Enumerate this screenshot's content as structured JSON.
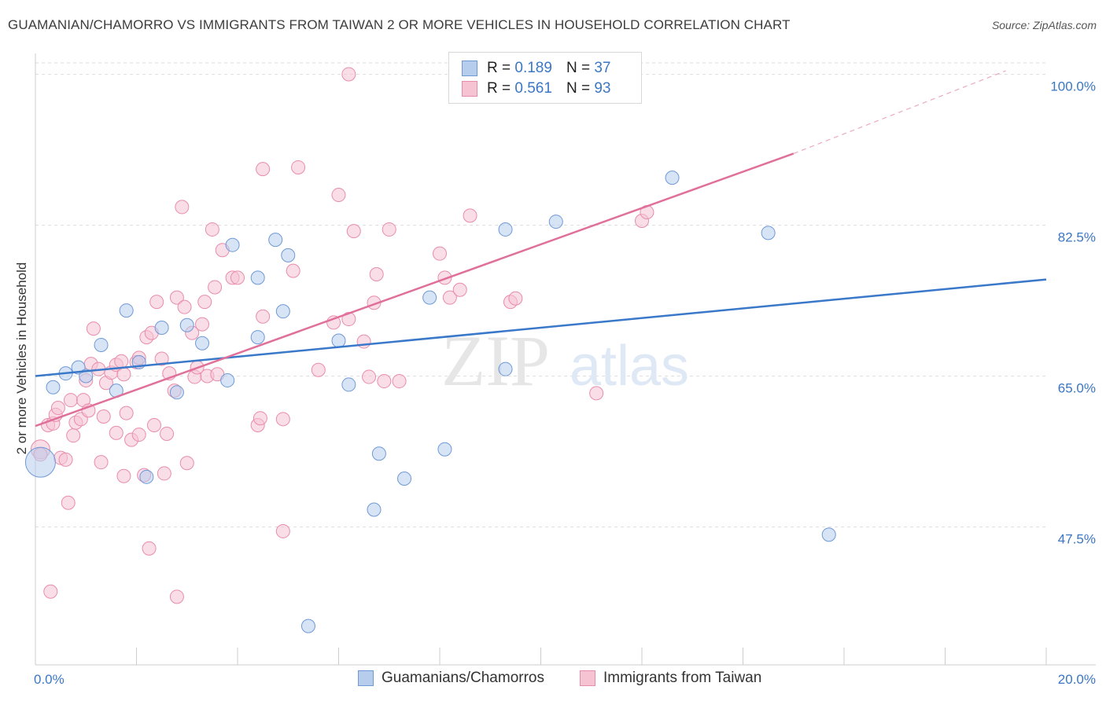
{
  "title": "GUAMANIAN/CHAMORRO VS IMMIGRANTS FROM TAIWAN 2 OR MORE VEHICLES IN HOUSEHOLD CORRELATION CHART",
  "source": "Source: ZipAtlas.com",
  "watermark": {
    "zip": "ZIP",
    "atlas": "atlas"
  },
  "legend": {
    "rows": [
      {
        "r_label": "R =",
        "r_value": "0.189",
        "n_label": "N =",
        "n_value": "37"
      },
      {
        "r_label": "R =",
        "r_value": "0.561",
        "n_label": "N =",
        "n_value": "93"
      }
    ]
  },
  "bottom_legend": [
    "Guamanians/Chamorros",
    "Immigrants from Taiwan"
  ],
  "colors": {
    "blue_fill": "#b7cdee",
    "blue_stroke": "#6f99d6",
    "blue_line": "#3a78c9",
    "pink_fill": "#f6c3d3",
    "pink_stroke": "#e98cab",
    "pink_line": "#e0709a",
    "tick_label": "#3b77c4",
    "grid": "#dddddd"
  },
  "chart_data": {
    "type": "scatter",
    "title": "GUAMANIAN/CHAMORRO VS IMMIGRANTS FROM TAIWAN 2 OR MORE VEHICLES IN HOUSEHOLD CORRELATION CHART",
    "xlabel": "",
    "ylabel": "2 or more Vehicles in Household",
    "x_tick_labels": [
      "0.0%",
      "20.0%"
    ],
    "y_tick_labels": [
      "100.0%",
      "82.5%",
      "65.0%",
      "47.5%"
    ],
    "y_tick_values": [
      100.0,
      82.5,
      65.0,
      47.5
    ],
    "xlim": [
      0,
      20
    ],
    "ylim": [
      31.5,
      101.5
    ],
    "grid": "horizontal dashed",
    "legend_placement": "top-center",
    "series": [
      {
        "name": "Guamanians/Chamorros",
        "R": 0.189,
        "N": 37,
        "points": [
          [
            0.1,
            55.0,
            3
          ],
          [
            0.35,
            63.7,
            1
          ],
          [
            0.6,
            65.3,
            1
          ],
          [
            0.85,
            66.0,
            1
          ],
          [
            1.0,
            65.0,
            1
          ],
          [
            1.3,
            68.6,
            1
          ],
          [
            1.6,
            63.3,
            1
          ],
          [
            1.8,
            72.6,
            1
          ],
          [
            2.05,
            66.6,
            1
          ],
          [
            2.2,
            53.3,
            1
          ],
          [
            2.5,
            70.6,
            1
          ],
          [
            2.8,
            63.1,
            1
          ],
          [
            3.0,
            70.9,
            1
          ],
          [
            3.3,
            68.8,
            1
          ],
          [
            3.8,
            64.5,
            1
          ],
          [
            3.9,
            80.2,
            1
          ],
          [
            4.4,
            69.5,
            1
          ],
          [
            4.4,
            76.4,
            1
          ],
          [
            4.75,
            80.8,
            1
          ],
          [
            4.9,
            72.5,
            1
          ],
          [
            5.0,
            79.0,
            1
          ],
          [
            5.4,
            36.0,
            1
          ],
          [
            6.0,
            69.1,
            1
          ],
          [
            6.2,
            64.0,
            1
          ],
          [
            6.7,
            49.5,
            1
          ],
          [
            6.8,
            56.0,
            1
          ],
          [
            7.3,
            53.1,
            1
          ],
          [
            7.8,
            74.1,
            1
          ],
          [
            8.1,
            56.5,
            1
          ],
          [
            9.3,
            65.8,
            1
          ],
          [
            9.3,
            82.0,
            1
          ],
          [
            10.3,
            82.9,
            1
          ],
          [
            12.6,
            88.0,
            1
          ],
          [
            14.5,
            81.6,
            1
          ],
          [
            15.7,
            46.6,
            1
          ]
        ],
        "trend": {
          "x0": 0,
          "y0": 65.0,
          "x1": 20,
          "y1": 76.2
        }
      },
      {
        "name": "Immigrants from Taiwan",
        "R": 0.561,
        "N": 93,
        "points": [
          [
            0.1,
            56.5,
            2
          ],
          [
            0.1,
            55.9,
            1
          ],
          [
            0.25,
            59.3,
            1
          ],
          [
            0.3,
            40.0,
            1
          ],
          [
            0.35,
            59.5,
            1
          ],
          [
            0.4,
            60.5,
            1
          ],
          [
            0.45,
            61.3,
            1
          ],
          [
            0.5,
            55.5,
            1
          ],
          [
            0.6,
            55.3,
            1
          ],
          [
            0.65,
            50.3,
            1
          ],
          [
            0.7,
            62.2,
            1
          ],
          [
            0.75,
            58.1,
            1
          ],
          [
            0.8,
            59.6,
            1
          ],
          [
            0.9,
            60.0,
            1
          ],
          [
            0.95,
            62.2,
            1
          ],
          [
            1.0,
            64.5,
            1
          ],
          [
            1.05,
            61.0,
            1
          ],
          [
            1.1,
            66.4,
            1
          ],
          [
            1.15,
            70.5,
            1
          ],
          [
            1.25,
            65.8,
            1
          ],
          [
            1.3,
            55.0,
            1
          ],
          [
            1.35,
            60.3,
            1
          ],
          [
            1.4,
            64.2,
            1
          ],
          [
            1.5,
            65.4,
            1
          ],
          [
            1.6,
            66.3,
            1
          ],
          [
            1.6,
            58.4,
            1
          ],
          [
            1.7,
            66.7,
            1
          ],
          [
            1.75,
            65.2,
            1
          ],
          [
            1.75,
            53.4,
            1
          ],
          [
            1.8,
            60.7,
            1
          ],
          [
            1.9,
            57.6,
            1
          ],
          [
            2.0,
            66.6,
            1
          ],
          [
            2.05,
            67.1,
            1
          ],
          [
            2.05,
            58.2,
            1
          ],
          [
            2.15,
            53.5,
            1
          ],
          [
            2.2,
            69.5,
            1
          ],
          [
            2.3,
            70.0,
            1
          ],
          [
            2.25,
            45.0,
            1
          ],
          [
            2.35,
            59.3,
            1
          ],
          [
            2.4,
            73.6,
            1
          ],
          [
            2.5,
            67.0,
            1
          ],
          [
            2.55,
            53.7,
            1
          ],
          [
            2.6,
            58.3,
            1
          ],
          [
            2.65,
            65.3,
            1
          ],
          [
            2.75,
            63.3,
            1
          ],
          [
            2.8,
            74.1,
            1
          ],
          [
            2.8,
            39.4,
            1
          ],
          [
            2.9,
            84.6,
            1
          ],
          [
            2.95,
            73.0,
            1
          ],
          [
            3.0,
            54.9,
            1
          ],
          [
            3.1,
            70.0,
            1
          ],
          [
            3.15,
            64.9,
            1
          ],
          [
            3.2,
            66.0,
            1
          ],
          [
            3.3,
            71.0,
            1
          ],
          [
            3.35,
            73.6,
            1
          ],
          [
            3.4,
            65.0,
            1
          ],
          [
            3.5,
            82.0,
            1
          ],
          [
            3.55,
            75.3,
            1
          ],
          [
            3.6,
            65.2,
            1
          ],
          [
            3.7,
            79.6,
            1
          ],
          [
            3.9,
            76.4,
            1
          ],
          [
            4.0,
            76.4,
            1
          ],
          [
            4.4,
            59.3,
            1
          ],
          [
            4.45,
            60.1,
            1
          ],
          [
            4.5,
            71.9,
            1
          ],
          [
            4.5,
            89.0,
            1
          ],
          [
            4.9,
            60.0,
            1
          ],
          [
            4.9,
            47.0,
            1
          ],
          [
            5.1,
            77.2,
            1
          ],
          [
            5.2,
            89.2,
            1
          ],
          [
            5.6,
            65.7,
            1
          ],
          [
            5.9,
            71.2,
            1
          ],
          [
            6.0,
            86.0,
            1
          ],
          [
            6.2,
            71.6,
            1
          ],
          [
            6.3,
            81.8,
            1
          ],
          [
            6.2,
            100.0,
            1
          ],
          [
            6.5,
            69.0,
            1
          ],
          [
            6.6,
            64.9,
            1
          ],
          [
            6.7,
            73.5,
            1
          ],
          [
            6.75,
            76.8,
            1
          ],
          [
            6.9,
            64.4,
            1
          ],
          [
            7.0,
            82.0,
            1
          ],
          [
            7.2,
            64.4,
            1
          ],
          [
            8.0,
            79.2,
            1
          ],
          [
            8.1,
            76.4,
            1
          ],
          [
            8.2,
            74.1,
            1
          ],
          [
            8.4,
            75.0,
            1
          ],
          [
            8.6,
            83.6,
            1
          ],
          [
            9.4,
            73.6,
            1
          ],
          [
            9.5,
            74.0,
            1
          ],
          [
            11.1,
            63.0,
            1
          ],
          [
            12.0,
            83.0,
            1
          ],
          [
            12.1,
            84.0,
            1
          ]
        ],
        "trend": {
          "x0": 0,
          "y0": 59.2,
          "x1": 15.0,
          "y1": 90.8
        },
        "trend_dashed": {
          "x0": 15.0,
          "y0": 90.8,
          "x1": 19.2,
          "y1": 100.4
        }
      }
    ]
  }
}
